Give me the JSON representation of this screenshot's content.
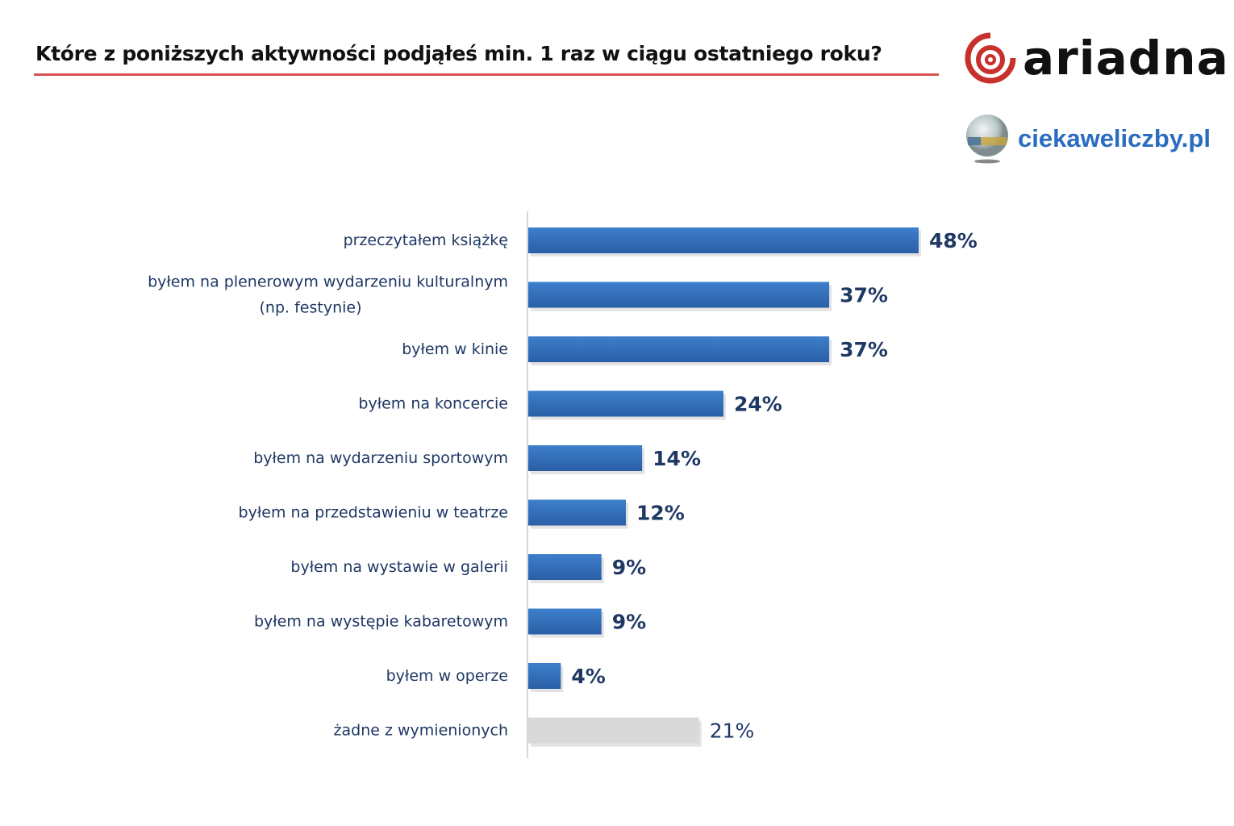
{
  "logos": {
    "ariadna": "ariadna",
    "ciekaweliczby": "ciekaweliczby.pl"
  },
  "chart_data": {
    "type": "bar",
    "orientation": "horizontal",
    "title": "Które z poniższych aktywności podjąłeś min. 1 raz w ciągu ostatniego roku?",
    "categories": [
      [
        "przeczytałem książkę"
      ],
      [
        "byłem na plenerowym wydarzeniu kulturalnym",
        "(np. festynie)"
      ],
      [
        "byłem w kinie"
      ],
      [
        "byłem na koncercie"
      ],
      [
        "byłem na wydarzeniu sportowym"
      ],
      [
        "byłem na przedstawieniu w teatrze"
      ],
      [
        "byłem na wystawie w galerii"
      ],
      [
        "byłem na występie kabaretowym"
      ],
      [
        "byłem w operze"
      ],
      [
        "żadne z wymienionych"
      ]
    ],
    "values": [
      48,
      37,
      37,
      24,
      14,
      12,
      9,
      9,
      4,
      21
    ],
    "labels": [
      "48%",
      "37%",
      "37%",
      "24%",
      "14%",
      "12%",
      "9%",
      "9%",
      "4%",
      "21%"
    ],
    "colors": {
      "main": "#3470be",
      "main_dark": "#275a9e",
      "none": "#d9d9d9",
      "text": "#1f3864"
    },
    "xlim": [
      0,
      50
    ],
    "grid": false,
    "legend": "none"
  }
}
